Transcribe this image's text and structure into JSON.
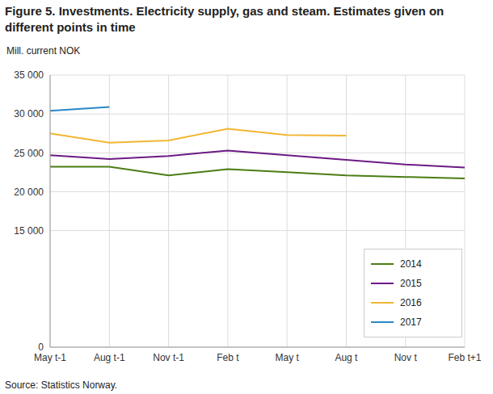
{
  "chart_data": {
    "type": "line",
    "title": "Figure 5. Investments. Electricity supply, gas and steam. Estimates given on different points in time",
    "y_label": "Mill. current NOK",
    "source": "Source: Statistics Norway.",
    "categories": [
      "May t-1",
      "Aug t-1",
      "Nov t-1",
      "Feb t",
      "May t",
      "Aug t",
      "Nov t",
      "Feb t+1"
    ],
    "series": [
      {
        "name": "2014",
        "color": "#4b7d13",
        "values": [
          23200,
          23200,
          22100,
          22900,
          22500,
          22100,
          21900,
          21700
        ]
      },
      {
        "name": "2015",
        "color": "#6c1a84",
        "values": [
          24700,
          24200,
          24600,
          25300,
          24700,
          24100,
          23500,
          23100
        ]
      },
      {
        "name": "2016",
        "color": "#f2b632",
        "values": [
          27500,
          26300,
          26600,
          28100,
          27300,
          27200,
          null,
          null
        ]
      },
      {
        "name": "2017",
        "color": "#2a86c8",
        "values": [
          30400,
          30900,
          null,
          null,
          null,
          null,
          null,
          null
        ]
      }
    ],
    "ylim": [
      0,
      35000
    ],
    "yticks": [
      0,
      {
        "value": 15000,
        "label": "15 000"
      },
      {
        "value": 20000,
        "label": "20 000"
      },
      {
        "value": 25000,
        "label": "25 000"
      },
      {
        "value": 30000,
        "label": "30 000"
      },
      {
        "value": 35000,
        "label": "35 000"
      }
    ],
    "grid": true,
    "legend": "lower right"
  }
}
